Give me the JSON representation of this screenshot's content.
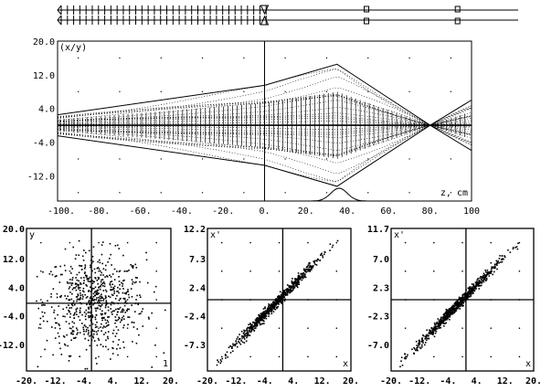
{
  "chart_data": [
    {
      "type": "beamline",
      "description_visible": "element markers",
      "elements_z": [
        -100,
        -97,
        -94,
        -91,
        -88,
        -85,
        -82,
        -79,
        -76,
        -73,
        -70,
        -67,
        -64,
        -61,
        -58,
        -55,
        -52,
        -49,
        -46,
        -43,
        -40,
        -37,
        -34,
        -31,
        -28,
        -25,
        -22,
        -19,
        -16,
        -13,
        -10,
        -7,
        -4,
        -1
      ],
      "marker_triangle_z": 0,
      "marker_boxes_z": [
        36,
        80
      ]
    },
    {
      "type": "line",
      "ylabel": "(x/y)",
      "xlabel": "z, cm",
      "xlim": [
        -100,
        100
      ],
      "ylim": [
        -18,
        20
      ],
      "xticks": [
        "-100.",
        "-80.",
        "-60.",
        "-40.",
        "-20.",
        "0.",
        "20.",
        "40.",
        "60.",
        "80.",
        "100"
      ],
      "yticks": [
        "20.0",
        "12.0",
        "4.0",
        "-4.0",
        "-12.0"
      ],
      "ytick_values": [
        20,
        12,
        4,
        -4,
        -12
      ],
      "envelope": {
        "z": [
          -100,
          0,
          35,
          80,
          100
        ],
        "upper": [
          2.5,
          9.5,
          14.5,
          0,
          6
        ],
        "lower": [
          -2.5,
          -9.5,
          -14.5,
          0,
          -6
        ]
      },
      "focus_z": 80,
      "peak": {
        "z_center": 36,
        "width": 4
      }
    },
    {
      "type": "scatter",
      "ylabel": "y",
      "xlabel": "1",
      "xticks": [
        "-20.",
        "-12.",
        "-4.",
        "4.",
        "12.",
        "20."
      ],
      "yticks": [
        "20.0",
        "12.0",
        "4.0",
        "-4.0",
        "-12.0"
      ],
      "xlim": [
        -20,
        20
      ],
      "ylim": [
        -20,
        20
      ],
      "distribution": "round cloud",
      "n_points": 700
    },
    {
      "type": "scatter",
      "ylabel": "x'",
      "xlabel": "x",
      "xticks": [
        "-20.",
        "-12.",
        "-4.",
        "4.",
        "12.",
        "20."
      ],
      "yticks": [
        "12.2",
        "7.3",
        "2.4",
        "-2.4",
        "-7.3"
      ],
      "xlim": [
        -20,
        20
      ],
      "ylim": [
        -12.2,
        12.2
      ],
      "distribution": "correlated ellipse",
      "slope": 0.63,
      "n_points": 700
    },
    {
      "type": "scatter",
      "ylabel": "x'",
      "xlabel": "x",
      "xticks": [
        "-20.",
        "-12.",
        "-4.",
        "4.",
        "12.",
        "20."
      ],
      "yticks": [
        "11.7",
        "7.0",
        "2.3",
        "-2.3",
        "-7.0"
      ],
      "xlim": [
        -20,
        20
      ],
      "ylim": [
        -11.7,
        11.7
      ],
      "distribution": "correlated ellipse",
      "slope": 0.6,
      "n_points": 700
    }
  ]
}
